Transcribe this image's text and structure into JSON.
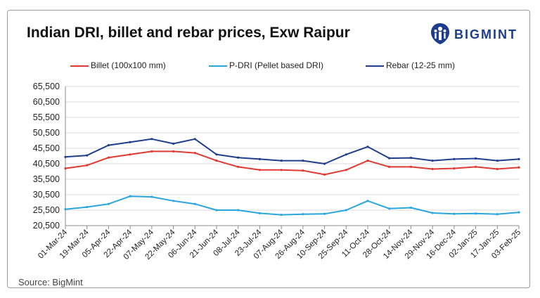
{
  "title": "Indian DRI, billet and rebar prices, Exw Raipur",
  "logo": {
    "text": "BIGMINT",
    "icon": "bigmint-logo-icon"
  },
  "source": "Source: BigMint",
  "colors": {
    "billet": "#e03a33",
    "pdri": "#2aa6df",
    "rebar": "#1f3f8c",
    "grid": "#d9d9d9",
    "logo": "#1e3d8f"
  },
  "chart_data": {
    "type": "line",
    "title": "Indian DRI, billet and rebar prices, Exw Raipur",
    "xlabel": "",
    "ylabel": "",
    "ylim": [
      20500,
      65500
    ],
    "yticks": [
      65500,
      60500,
      55500,
      50500,
      45500,
      40500,
      35500,
      30500,
      25500,
      20500
    ],
    "ytick_labels": [
      "65,500",
      "60,500",
      "55,500",
      "50,500",
      "45,500",
      "40,500",
      "35,500",
      "30,500",
      "25,500",
      "20,500"
    ],
    "grid": "horizontal",
    "legend_position": "top",
    "x_tick_labels": [
      "01-Mar-24",
      "19-Mar-24",
      "05-Apr-24",
      "22-Apr-24",
      "07-May-24",
      "22-May-24",
      "06-Jun-24",
      "21-Jun-24",
      "08-Jul-24",
      "23-Jul-24",
      "07-Aug-24",
      "26-Aug-24",
      "10-Sep-24",
      "25-Sep-24",
      "11-Oct-24",
      "28-Oct-24",
      "14-Nov-24",
      "29-Nov-24",
      "16-Dec-24",
      "02-Jan-25",
      "17-Jan-25",
      "03-Feb-25"
    ],
    "x": [
      "01-Mar-24",
      "19-Mar-24",
      "05-Apr-24",
      "22-Apr-24",
      "07-May-24",
      "22-May-24",
      "06-Jun-24",
      "21-Jun-24",
      "08-Jul-24",
      "23-Jul-24",
      "07-Aug-24",
      "26-Aug-24",
      "10-Sep-24",
      "25-Sep-24",
      "11-Oct-24",
      "28-Oct-24",
      "14-Nov-24",
      "29-Nov-24",
      "16-Dec-24",
      "02-Jan-25",
      "17-Jan-25",
      "03-Feb-25"
    ],
    "series": [
      {
        "name": "Billet (100x100 mm)",
        "key": "billet",
        "values": [
          39000,
          40000,
          42500,
          43500,
          44500,
          44500,
          44000,
          41500,
          39500,
          38500,
          38500,
          38300,
          37000,
          38500,
          41500,
          39500,
          39500,
          38800,
          39000,
          39500,
          38800,
          39300
        ]
      },
      {
        "name": "P-DRI (Pellet based DRI)",
        "key": "pdri",
        "values": [
          25800,
          26500,
          27500,
          30000,
          29800,
          28500,
          27500,
          25500,
          25500,
          24500,
          24000,
          24200,
          24300,
          25500,
          28500,
          26000,
          26300,
          24600,
          24300,
          24400,
          24200,
          24800
        ]
      },
      {
        "name": "Rebar (12-25 mm)",
        "key": "rebar",
        "values": [
          42700,
          43200,
          46500,
          47500,
          48500,
          47000,
          48500,
          43500,
          42500,
          42000,
          41500,
          41500,
          40500,
          43500,
          46000,
          42300,
          42400,
          41500,
          42000,
          42200,
          41500,
          42000
        ]
      }
    ]
  }
}
